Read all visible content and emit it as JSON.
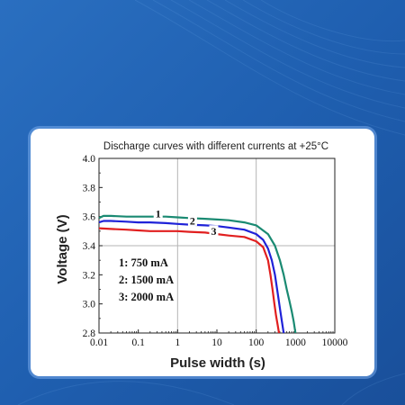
{
  "colors": {
    "background": "#1f5fb0",
    "card": "#ffffff",
    "series": [
      "#1a8a72",
      "#1f22d8",
      "#e11f1f"
    ]
  },
  "chart_data": {
    "type": "line",
    "title": "Discharge curves with different currents at +25°C",
    "xlabel": "Pulse width (s)",
    "ylabel": "Voltage (V)",
    "xscale": "log",
    "xlim": [
      0.01,
      10000
    ],
    "ylim": [
      2.8,
      4.0
    ],
    "x_ticks": [
      "0.01",
      "0.1",
      "1",
      "10",
      "100",
      "1000",
      "10000"
    ],
    "y_ticks": [
      "2.8",
      "3.0",
      "3.2",
      "3.4",
      "3.6",
      "3.8",
      "4.0"
    ],
    "grid": true,
    "legend_position": "left-center",
    "legend": [
      "1: 750 mA",
      "2: 1500 mA",
      "3: 2000 mA"
    ],
    "series": [
      {
        "name": "1",
        "x": [
          0.01,
          0.013,
          0.02,
          0.05,
          0.1,
          0.2,
          0.5,
          1,
          2,
          5,
          10,
          20,
          50,
          100,
          200,
          300,
          400,
          500,
          600,
          700,
          800,
          900,
          1000
        ],
        "y": [
          3.59,
          3.605,
          3.605,
          3.6,
          3.6,
          3.6,
          3.6,
          3.595,
          3.59,
          3.585,
          3.58,
          3.575,
          3.56,
          3.54,
          3.48,
          3.4,
          3.3,
          3.2,
          3.1,
          3.02,
          2.95,
          2.88,
          2.8
        ]
      },
      {
        "name": "2",
        "x": [
          0.01,
          0.013,
          0.02,
          0.05,
          0.1,
          0.2,
          0.5,
          1,
          2,
          5,
          10,
          20,
          50,
          100,
          150,
          200,
          250,
          300,
          350,
          400,
          450,
          500
        ],
        "y": [
          3.56,
          3.57,
          3.57,
          3.565,
          3.56,
          3.56,
          3.555,
          3.55,
          3.545,
          3.54,
          3.535,
          3.525,
          3.51,
          3.48,
          3.44,
          3.38,
          3.3,
          3.2,
          3.08,
          2.97,
          2.88,
          2.8
        ]
      },
      {
        "name": "3",
        "x": [
          0.01,
          0.02,
          0.05,
          0.1,
          0.2,
          0.5,
          1,
          2,
          5,
          10,
          20,
          50,
          100,
          150,
          200,
          230,
          260,
          290,
          320,
          350,
          380
        ],
        "y": [
          3.52,
          3.515,
          3.51,
          3.505,
          3.5,
          3.5,
          3.5,
          3.495,
          3.49,
          3.48,
          3.47,
          3.46,
          3.43,
          3.39,
          3.3,
          3.2,
          3.1,
          3.0,
          2.92,
          2.86,
          2.8
        ]
      }
    ],
    "curve_labels": [
      {
        "text": "1",
        "x": 0.32,
        "y": 3.605
      },
      {
        "text": "2",
        "x": 2.4,
        "y": 3.555
      },
      {
        "text": "3",
        "x": 8.3,
        "y": 3.485
      }
    ]
  }
}
